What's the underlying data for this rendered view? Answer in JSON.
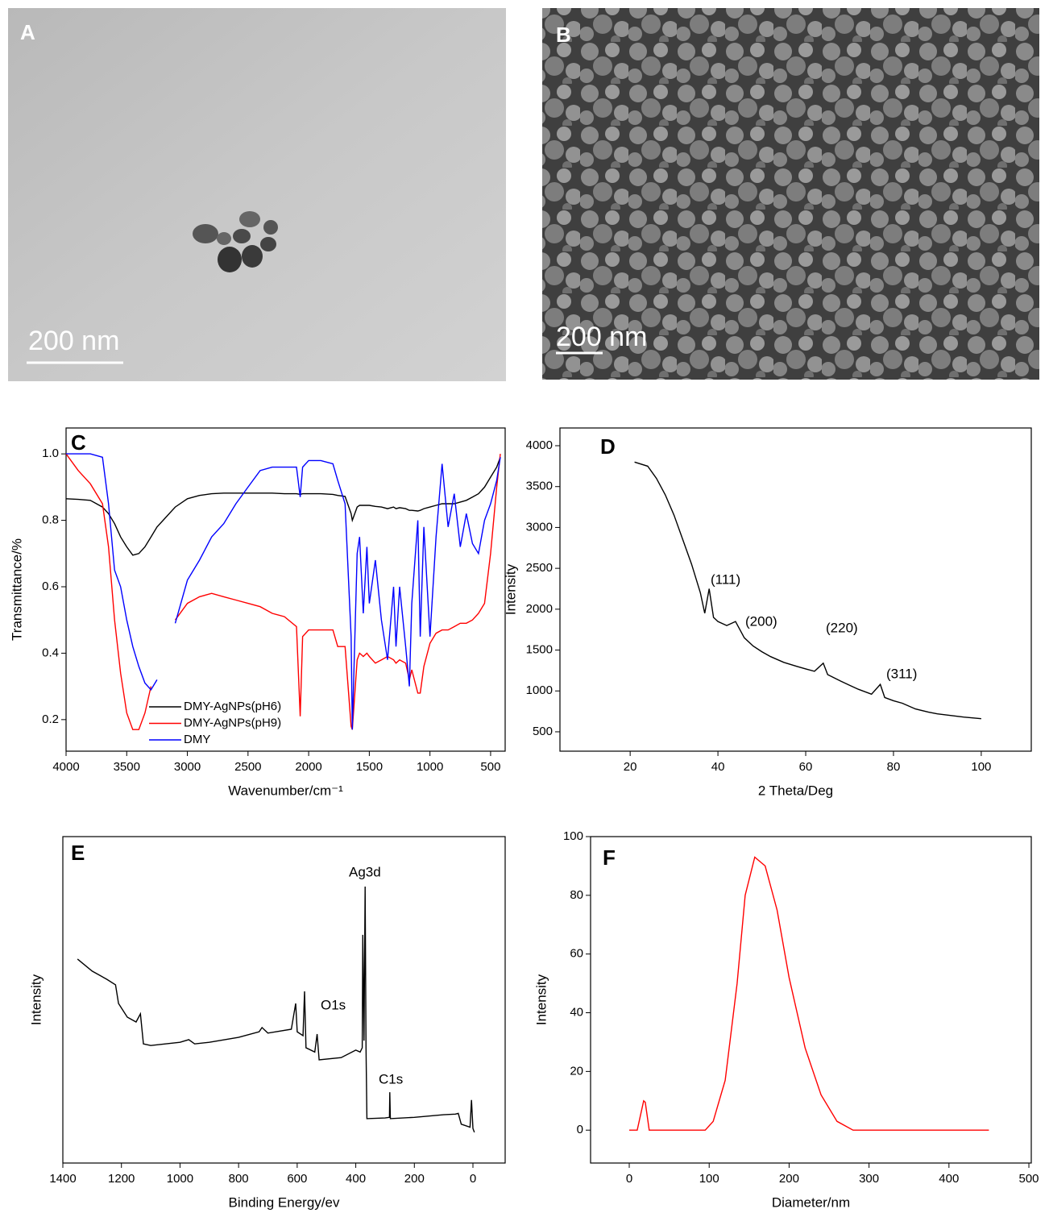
{
  "images": [
    {
      "label": "A",
      "scale_bar": "200 nm"
    },
    {
      "label": "B",
      "scale_bar": "200 nm"
    }
  ],
  "chart_data": [
    {
      "type": "line",
      "panel": "C",
      "xlabel": "Wavenumber/cm⁻¹",
      "ylabel": "Transmittance/%",
      "xlim": [
        4000,
        380
      ],
      "ylim": [
        0.105,
        1.078
      ],
      "xticks": [
        4000,
        3500,
        3000,
        2500,
        2000,
        1500,
        1000,
        500
      ],
      "yticks": [
        0.2,
        0.4,
        0.6,
        0.8,
        {
          "value": 1,
          "label": "1.0"
        }
      ],
      "legend": "lower-left",
      "x": [
        4000,
        3900,
        3800,
        3700,
        3650,
        3600,
        3550,
        3500,
        3450,
        3400,
        3350,
        3300,
        3250,
        3200,
        3100,
        3000,
        2900,
        2800,
        2700,
        2600,
        2500,
        2400,
        2300,
        2200,
        2100,
        2070,
        2050,
        2000,
        1900,
        1800,
        1760,
        1700,
        1650,
        1640,
        1600,
        1580,
        1550,
        1520,
        1500,
        1450,
        1400,
        1350,
        1300,
        1280,
        1250,
        1200,
        1170,
        1150,
        1100,
        1080,
        1050,
        1000,
        950,
        900,
        850,
        800,
        750,
        700,
        650,
        600,
        550,
        500,
        450,
        420
      ],
      "series": [
        {
          "name": "DMY-AgNPs(pH6)",
          "color": "#000000",
          "values": [
            0.865,
            0.863,
            0.86,
            0.84,
            0.82,
            0.79,
            0.75,
            0.72,
            0.695,
            0.7,
            0.72,
            0.75,
            0.78,
            0.8,
            0.84,
            0.865,
            0.875,
            0.88,
            0.882,
            0.882,
            0.882,
            0.882,
            0.882,
            0.88,
            0.88,
            0.878,
            0.88,
            0.88,
            0.88,
            0.878,
            0.875,
            0.872,
            0.82,
            0.8,
            0.84,
            0.845,
            0.845,
            0.845,
            0.845,
            0.842,
            0.84,
            0.835,
            0.84,
            0.835,
            0.838,
            0.835,
            0.83,
            0.83,
            0.828,
            0.83,
            0.835,
            0.84,
            0.845,
            0.85,
            0.85,
            0.85,
            0.855,
            0.86,
            0.87,
            0.88,
            0.9,
            0.93,
            0.96,
            0.99
          ]
        },
        {
          "name": "DMY-AgNPs(pH9)",
          "color": "#ff0000",
          "values": [
            1.0,
            0.95,
            0.91,
            0.85,
            0.72,
            0.5,
            0.34,
            0.22,
            0.17,
            0.17,
            0.22,
            0.3,
            null,
            null,
            0.5,
            0.55,
            0.57,
            0.58,
            0.57,
            0.56,
            0.55,
            0.54,
            0.52,
            0.51,
            0.48,
            0.21,
            0.45,
            0.47,
            0.47,
            0.47,
            0.42,
            0.42,
            0.18,
            0.17,
            0.38,
            0.4,
            0.39,
            0.4,
            0.39,
            0.37,
            0.38,
            0.39,
            0.38,
            0.37,
            0.38,
            0.37,
            0.32,
            0.35,
            0.28,
            0.28,
            0.36,
            0.43,
            0.46,
            0.47,
            0.47,
            0.48,
            0.49,
            0.49,
            0.5,
            0.52,
            0.55,
            0.7,
            0.9,
            1.0
          ]
        },
        {
          "name": "DMY",
          "color": "#0000ff",
          "values": [
            1.0,
            1.0,
            1.0,
            0.99,
            0.85,
            0.65,
            0.6,
            0.5,
            0.42,
            0.36,
            0.31,
            0.29,
            0.32,
            null,
            0.49,
            0.62,
            0.68,
            0.75,
            0.79,
            0.85,
            0.9,
            0.95,
            0.96,
            0.96,
            0.96,
            0.87,
            0.96,
            0.98,
            0.98,
            0.97,
            0.92,
            0.85,
            0.45,
            0.17,
            0.7,
            0.75,
            0.52,
            0.72,
            0.55,
            0.68,
            0.5,
            0.38,
            0.6,
            0.42,
            0.6,
            0.42,
            0.3,
            0.55,
            0.8,
            0.45,
            0.78,
            0.45,
            0.75,
            0.97,
            0.78,
            0.88,
            0.72,
            0.82,
            0.73,
            0.7,
            0.8,
            0.85,
            0.92,
            0.99
          ]
        }
      ]
    },
    {
      "type": "line",
      "panel": "D",
      "xlabel": "2 Theta/Deg",
      "ylabel": "Intensity",
      "xlim": [
        4,
        111.4
      ],
      "ylim": [
        263,
        4217
      ],
      "xticks": [
        20,
        40,
        60,
        80,
        100
      ],
      "yticks": [
        500,
        1000,
        1500,
        2000,
        2500,
        3000,
        3500,
        4000
      ],
      "color": "#000000",
      "x": [
        21,
        24,
        26,
        28,
        30,
        32,
        34,
        36,
        37,
        38,
        39,
        40,
        42,
        44,
        46,
        48,
        50,
        52,
        55,
        58,
        60,
        62,
        64,
        65,
        68,
        70,
        72,
        75,
        77,
        78,
        80,
        82,
        85,
        88,
        90,
        93,
        96,
        100
      ],
      "values": [
        3800,
        3750,
        3600,
        3400,
        3150,
        2850,
        2550,
        2200,
        1950,
        2250,
        1900,
        1850,
        1800,
        1850,
        1650,
        1550,
        1480,
        1420,
        1350,
        1300,
        1270,
        1240,
        1340,
        1200,
        1120,
        1070,
        1020,
        960,
        1080,
        920,
        880,
        850,
        780,
        740,
        720,
        700,
        680,
        660
      ],
      "annotations": [
        "(111)",
        "(200)",
        "(220)",
        "(311)"
      ]
    },
    {
      "type": "line",
      "panel": "E",
      "xlabel": "Binding Energy/ev",
      "ylabel": "Intensity",
      "xlim": [
        1400,
        -110
      ],
      "ylim": [
        0,
        100
      ],
      "xticks": [
        1400,
        1200,
        1000,
        800,
        600,
        400,
        200,
        0
      ],
      "color": "#000000",
      "x": [
        1350,
        1300,
        1250,
        1220,
        1210,
        1180,
        1150,
        1135,
        1125,
        1100,
        1000,
        970,
        950,
        900,
        800,
        730,
        720,
        700,
        620,
        605,
        600,
        580,
        575,
        570,
        540,
        532,
        525,
        450,
        400,
        385,
        378,
        376,
        372,
        368,
        365,
        362,
        300,
        285,
        284,
        282,
        200,
        100,
        60,
        50,
        40,
        10,
        5,
        0,
        -5
      ],
      "values": [
        62.5,
        58.8,
        56.3,
        54.6,
        48.9,
        44.7,
        43.2,
        45.7,
        36.5,
        36,
        37,
        37.8,
        36.5,
        37,
        38.5,
        40.2,
        41.5,
        39.8,
        41,
        48.9,
        40.2,
        39,
        52.6,
        35.3,
        34,
        39.5,
        31.6,
        32.3,
        34.6,
        34,
        35.3,
        69.9,
        37.5,
        84.7,
        35.3,
        13.6,
        13.8,
        14,
        21.7,
        13.6,
        14,
        14.8,
        15,
        15.2,
        11.9,
        11,
        19.3,
        10.6,
        9.4
      ],
      "annotations": [
        "Ag3d",
        "O1s",
        "C1s"
      ]
    },
    {
      "type": "line",
      "panel": "F",
      "xlabel": "Diameter/nm",
      "ylabel": "Intensity",
      "xlim": [
        -48.4,
        503
      ],
      "ylim": [
        -11.2,
        100
      ],
      "xticks": [
        0,
        100,
        200,
        300,
        400,
        500
      ],
      "yticks": [
        0,
        20,
        40,
        60,
        80,
        100
      ],
      "color": "#ff0000",
      "x": [
        0,
        10,
        18,
        20,
        25,
        95,
        105,
        120,
        135,
        145,
        157,
        170,
        185,
        200,
        220,
        240,
        260,
        280,
        450
      ],
      "values": [
        0,
        0,
        10,
        9.5,
        0,
        0,
        3,
        17,
        50,
        80,
        93,
        90,
        75,
        52,
        28,
        12,
        3,
        0,
        0
      ]
    }
  ]
}
